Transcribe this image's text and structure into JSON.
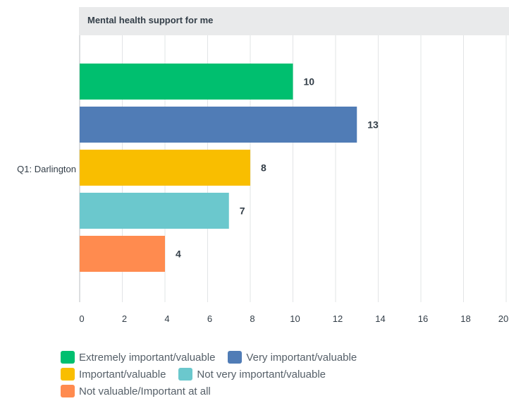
{
  "chart_data": {
    "type": "bar",
    "orientation": "horizontal",
    "title": "Mental health support for me",
    "categories": [
      "Q1: Darlington"
    ],
    "series": [
      {
        "name": "Extremely important/valuable",
        "values": [
          10
        ],
        "color": "#00bf6f"
      },
      {
        "name": "Very important/valuable",
        "values": [
          13
        ],
        "color": "#507cb6"
      },
      {
        "name": "Important/valuable",
        "values": [
          8
        ],
        "color": "#f9be00"
      },
      {
        "name": "Not very important/valuable",
        "values": [
          7
        ],
        "color": "#6bc8cd"
      },
      {
        "name": "Not valuable/Important at all",
        "values": [
          4
        ],
        "color": "#ff8b4f"
      }
    ],
    "xlim": [
      0,
      20
    ],
    "xticks": [
      "0",
      "2",
      "4",
      "6",
      "8",
      "10",
      "12",
      "14",
      "16",
      "18",
      "20"
    ],
    "grid": true,
    "legend_position": "bottom"
  }
}
